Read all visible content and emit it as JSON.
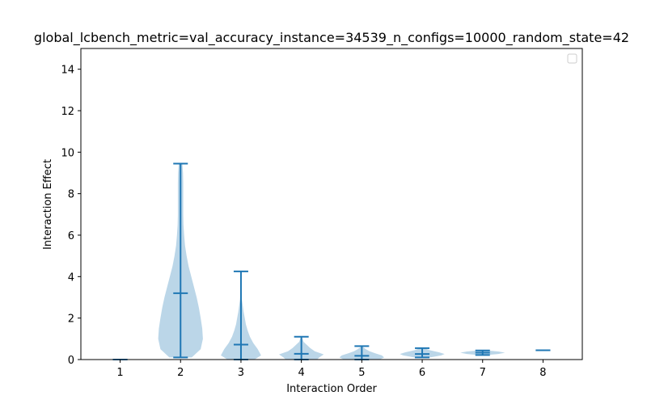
{
  "chart_data": {
    "type": "violin",
    "title": "global_lcbench_metric=val_accuracy_instance=34539_n_configs=10000_random_state=42",
    "xlabel": "Interaction Order",
    "ylabel": "Interaction Effect",
    "categories": [
      1,
      2,
      3,
      4,
      5,
      6,
      7,
      8
    ],
    "ylim": [
      0,
      15
    ],
    "xlim": [
      0.35,
      8.65
    ],
    "yticks": [
      0,
      2,
      4,
      6,
      8,
      10,
      12,
      14
    ],
    "legend": {
      "placement": "top-right",
      "entries": []
    },
    "grid": false,
    "colors": {
      "line": "#1f77b4",
      "body": "#1f77b4"
    },
    "violins": [
      {
        "order": 1,
        "min": 0.0,
        "mean": 0.0,
        "max": 0.0,
        "density": []
      },
      {
        "order": 2,
        "min": 0.1,
        "mean": 3.2,
        "max": 9.45,
        "density": [
          [
            0.1,
            0.5
          ],
          [
            0.5,
            0.9
          ],
          [
            1.0,
            1.0
          ],
          [
            1.5,
            0.97
          ],
          [
            2.0,
            0.9
          ],
          [
            2.5,
            0.82
          ],
          [
            3.0,
            0.72
          ],
          [
            3.5,
            0.6
          ],
          [
            4.0,
            0.48
          ],
          [
            4.5,
            0.36
          ],
          [
            5.0,
            0.27
          ],
          [
            5.5,
            0.2
          ],
          [
            6.0,
            0.16
          ],
          [
            6.5,
            0.13
          ],
          [
            7.0,
            0.12
          ],
          [
            7.5,
            0.12
          ],
          [
            8.0,
            0.12
          ],
          [
            8.5,
            0.12
          ],
          [
            9.0,
            0.11
          ],
          [
            9.45,
            0.08
          ]
        ]
      },
      {
        "order": 3,
        "min": 0.0,
        "mean": 0.72,
        "max": 4.25,
        "density": [
          [
            0.0,
            0.6
          ],
          [
            0.2,
            0.9
          ],
          [
            0.5,
            0.75
          ],
          [
            0.8,
            0.55
          ],
          [
            1.1,
            0.4
          ],
          [
            1.4,
            0.3
          ],
          [
            1.7,
            0.22
          ],
          [
            2.0,
            0.17
          ],
          [
            2.3,
            0.12
          ],
          [
            2.6,
            0.08
          ],
          [
            2.9,
            0.04
          ],
          [
            3.3,
            0.02
          ],
          [
            4.0,
            0.01
          ],
          [
            4.25,
            0.005
          ]
        ]
      },
      {
        "order": 4,
        "min": 0.0,
        "mean": 0.28,
        "max": 1.1,
        "density": [
          [
            0.0,
            0.7
          ],
          [
            0.1,
            0.8
          ],
          [
            0.25,
            1.0
          ],
          [
            0.4,
            0.6
          ],
          [
            0.55,
            0.4
          ],
          [
            0.7,
            0.25
          ],
          [
            0.85,
            0.1
          ],
          [
            1.0,
            0.05
          ],
          [
            1.1,
            0.02
          ]
        ]
      },
      {
        "order": 5,
        "min": 0.0,
        "mean": 0.18,
        "max": 0.65,
        "density": [
          [
            0.0,
            0.8
          ],
          [
            0.1,
            1.0
          ],
          [
            0.2,
            0.9
          ],
          [
            0.3,
            0.6
          ],
          [
            0.4,
            0.35
          ],
          [
            0.5,
            0.18
          ],
          [
            0.6,
            0.06
          ],
          [
            0.65,
            0.02
          ]
        ]
      },
      {
        "order": 6,
        "min": 0.1,
        "mean": 0.27,
        "max": 0.55,
        "density": [
          [
            0.1,
            0.35
          ],
          [
            0.2,
            0.85
          ],
          [
            0.27,
            1.0
          ],
          [
            0.35,
            0.75
          ],
          [
            0.45,
            0.35
          ],
          [
            0.55,
            0.08
          ]
        ]
      },
      {
        "order": 7,
        "min": 0.22,
        "mean": 0.33,
        "max": 0.44,
        "density": [
          [
            0.22,
            0.2
          ],
          [
            0.27,
            0.7
          ],
          [
            0.33,
            1.0
          ],
          [
            0.39,
            0.7
          ],
          [
            0.44,
            0.2
          ]
        ]
      },
      {
        "order": 8,
        "min": 0.45,
        "mean": 0.45,
        "max": 0.45,
        "density": []
      }
    ]
  }
}
